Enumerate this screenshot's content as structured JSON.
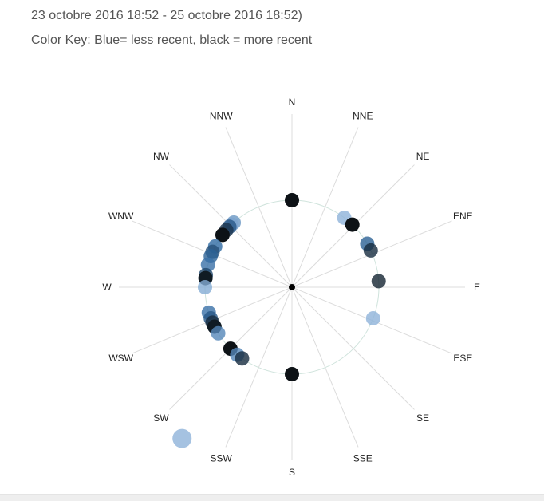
{
  "header": {
    "range_text": "23 octobre 2016 18:52 - 25 octobre 2016 18:52)",
    "key_text": "Color Key: Blue= less recent, black = more recent"
  },
  "chart_data": {
    "type": "scatter",
    "subtype": "polar-compass",
    "title": "",
    "legend_text": "Color Key: Blue= less recent, black = more recent",
    "directions": [
      "N",
      "NNE",
      "NE",
      "ENE",
      "E",
      "ESE",
      "SE",
      "SSE",
      "S",
      "SSW",
      "SW",
      "WSW",
      "W",
      "WNW",
      "NW",
      "NNW"
    ],
    "colors": {
      "less_recent": "#8fb3d9",
      "mid": "#2f6aa3",
      "more_recent": "#0d1216",
      "ring": "#cfe3dc",
      "spoke": "#dcdcdc"
    },
    "points": [
      {
        "bearing": 0,
        "ring": 1.0,
        "recency": 1.0
      },
      {
        "bearing": 180,
        "ring": 1.0,
        "recency": 1.0
      },
      {
        "bearing": 37,
        "ring": 1.0,
        "recency": 0.0
      },
      {
        "bearing": 44,
        "ring": 1.0,
        "recency": 1.0
      },
      {
        "bearing": 60,
        "ring": 1.0,
        "recency": 0.55
      },
      {
        "bearing": 65,
        "ring": 1.0,
        "recency": 0.85
      },
      {
        "bearing": 86,
        "ring": 1.0,
        "recency": 0.9
      },
      {
        "bearing": 111,
        "ring": 1.0,
        "recency": 0.0
      },
      {
        "bearing": 318,
        "ring": 1.0,
        "recency": 0.2
      },
      {
        "bearing": 316,
        "ring": 1.0,
        "recency": 0.1
      },
      {
        "bearing": 314,
        "ring": 1.0,
        "recency": 0.6
      },
      {
        "bearing": 311,
        "ring": 1.0,
        "recency": 0.8
      },
      {
        "bearing": 307,
        "ring": 1.0,
        "recency": 1.0
      },
      {
        "bearing": 298,
        "ring": 1.0,
        "recency": 0.5
      },
      {
        "bearing": 294,
        "ring": 1.0,
        "recency": 0.65
      },
      {
        "bearing": 291,
        "ring": 1.0,
        "recency": 0.55
      },
      {
        "bearing": 285,
        "ring": 1.0,
        "recency": 0.45
      },
      {
        "bearing": 278,
        "ring": 1.0,
        "recency": 0.7
      },
      {
        "bearing": 276,
        "ring": 1.0,
        "recency": 0.95
      },
      {
        "bearing": 270,
        "ring": 1.0,
        "recency": 0.05
      },
      {
        "bearing": 253,
        "ring": 1.0,
        "recency": 0.45
      },
      {
        "bearing": 249,
        "ring": 1.0,
        "recency": 0.6
      },
      {
        "bearing": 246,
        "ring": 1.0,
        "recency": 0.85
      },
      {
        "bearing": 243,
        "ring": 1.0,
        "recency": 0.95
      },
      {
        "bearing": 238,
        "ring": 1.0,
        "recency": 0.3
      },
      {
        "bearing": 225,
        "ring": 1.0,
        "recency": 1.0
      },
      {
        "bearing": 219,
        "ring": 1.0,
        "recency": 0.3
      },
      {
        "bearing": 215,
        "ring": 1.0,
        "recency": 0.85
      },
      {
        "bearing": 216,
        "ring": 2.15,
        "recency": 0.0,
        "large": true
      }
    ]
  }
}
